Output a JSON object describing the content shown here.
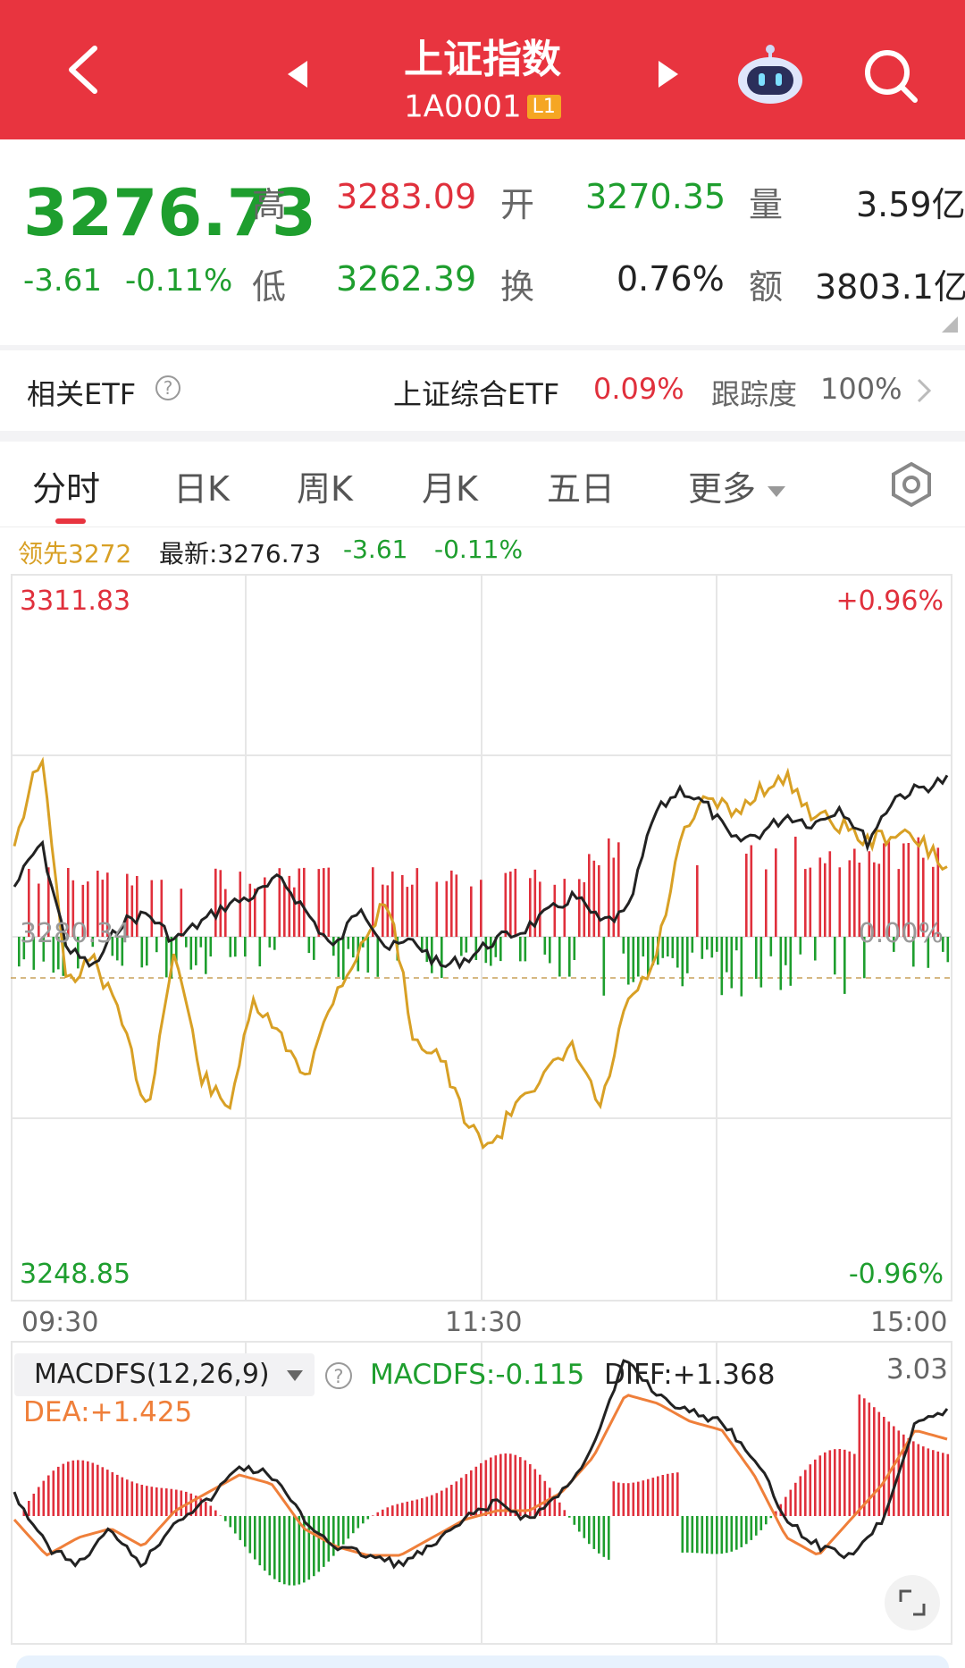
{
  "header": {
    "title": "上证指数",
    "code": "1A0001",
    "badge": "L1"
  },
  "quote": {
    "price": "3276.73",
    "change": "-3.61",
    "change_pct": "-0.11%",
    "high_label": "高",
    "high": "3283.09",
    "low_label": "低",
    "low": "3262.39",
    "open_label": "开",
    "open": "3270.35",
    "turnover_label": "换",
    "turnover": "0.76%",
    "volume_label": "量",
    "volume": "3.59亿",
    "amount_label": "额",
    "amount": "3803.1亿"
  },
  "etf": {
    "label": "相关ETF",
    "name": "上证综合ETF",
    "pct": "0.09%",
    "track_label": "跟踪度",
    "track": "100%"
  },
  "tabs": [
    "分时",
    "日K",
    "周K",
    "月K",
    "五日",
    "更多"
  ],
  "infoline": {
    "lead": "领先3272",
    "latest": "最新:3276.73",
    "change": "-3.61",
    "change_pct": "-0.11%"
  },
  "chart": {
    "y_max": "3311.83",
    "y_min": "3248.85",
    "pct_max": "+0.96%",
    "pct_min": "-0.96%",
    "prev_close": "3280.34",
    "zero_pct": "0.00%",
    "times": [
      "09:30",
      "11:30",
      "15:00"
    ]
  },
  "macd": {
    "selector": "MACDFS(12,26,9)",
    "macdfs": "MACDFS:-0.115",
    "diff": "DIFF:+1.368",
    "dea": "DEA:+1.425",
    "max": "3.03"
  },
  "colors": {
    "header": "#e8343f",
    "up": "#e0303c",
    "down": "#1e9e2e",
    "lead": "#d8a025",
    "price_line": "#222222",
    "dea_line": "#ef7f3a"
  }
}
